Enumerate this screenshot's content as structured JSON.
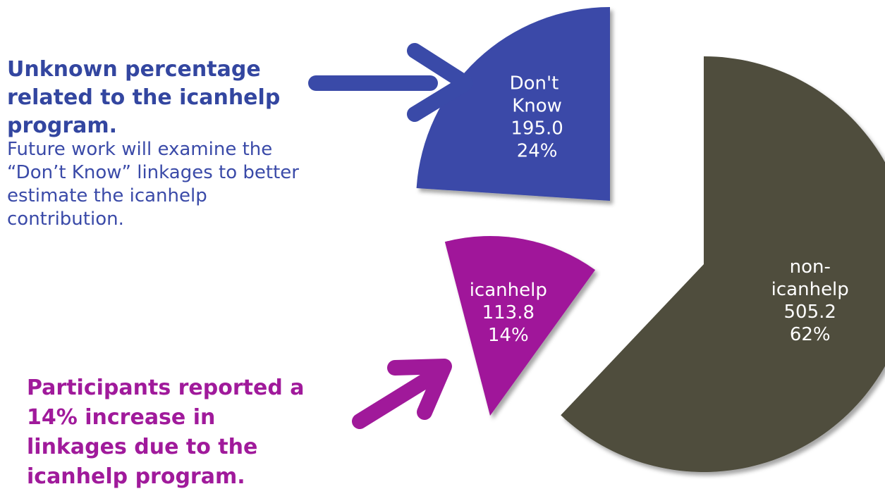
{
  "chart_data": {
    "type": "pie",
    "categories": [
      "non-icanhelp",
      "icanhelp",
      "Don't Know"
    ],
    "values": [
      505.2,
      113.8,
      195.0
    ],
    "value_labels": [
      "505.2",
      "113.8",
      "195.0"
    ],
    "percents": [
      62,
      14,
      24
    ],
    "percent_labels": [
      "62%",
      "14%",
      "24%"
    ],
    "colors": [
      "#4f4d3e",
      "#a0199a",
      "#3a4aa8"
    ]
  },
  "annotations": [
    {
      "title_lines": [
        "Unknown percentage",
        "related to the icanhelp",
        "program."
      ],
      "body_lines": [
        "Future work will examine the",
        "“Don’t Know” linkages to better",
        "estimate the icanhelp",
        "contribution."
      ]
    },
    {
      "title_lines": [
        "Participants reported a",
        "14% increase in",
        "linkages due to the",
        "icanhelp program."
      ]
    }
  ]
}
